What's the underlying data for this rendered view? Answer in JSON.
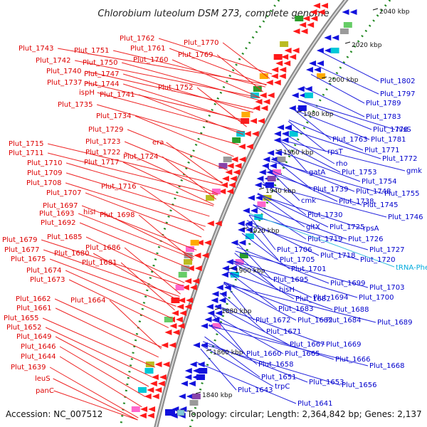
{
  "title": "Chlorobium luteolum DSM 273, complete genome",
  "accession": "Accession: NC_007512",
  "topology": "Topology: circular; Length: 2,364,842 bp; Genes: 2,137",
  "colors": {
    "forward_label": "#dd0000",
    "reverse_label": "#0000cc",
    "rna_label": "#00aadd",
    "backbone": "#888888",
    "dotted_track": "#228822"
  },
  "kbp_markers": [
    "2040 kbp",
    "2020 kbp",
    "2000 kbp",
    "1980 kbp",
    "1960 kbp",
    "1940 kbp",
    "1920 kbp",
    "1900 kbp",
    "1880 kbp",
    "1860 kbp",
    "1840 kbp"
  ],
  "left_labels": [
    "Plut_1762",
    "Plut_1770",
    "Plut_1743",
    "Plut_1751",
    "Plut_1761",
    "Plut_1769",
    "Plut_1742",
    "Plut_1750",
    "Plut_1760",
    "Plut_1740",
    "Plut_1747",
    "Plut_1737",
    "Plut_1744",
    "Plut_1752",
    "ispH",
    "Plut_1741",
    "Plut_1735",
    "Plut_1734",
    "Plut_1729",
    "Plut_1723",
    "era",
    "Plut_1715",
    "Plut_1722",
    "Plut_1711",
    "Plut_1717",
    "Plut_1724",
    "Plut_1710",
    "Plut_1709",
    "Plut_1708",
    "Plut_1716",
    "Plut_1707",
    "Plut_1697",
    "hisI",
    "Plut_1693",
    "Plut_1698",
    "Plut_1692",
    "Plut_1685",
    "Plut_1679",
    "Plut_1686",
    "Plut_1677",
    "Plut_1680",
    "Plut_1675",
    "Plut_1681",
    "Plut_1674",
    "Plut_1673",
    "Plut_1662",
    "Plut_1664",
    "Plut_1661",
    "Plut_1655",
    "Plut_1652",
    "Plut_1649",
    "Plut_1646",
    "Plut_1644",
    "Plut_1639",
    "leuS",
    "panC"
  ],
  "right_labels": [
    "Plut_1802",
    "Plut_1797",
    "Plut_1789",
    "Plut_1783",
    "Plut_1778",
    "hisS",
    "Plut_1781",
    "Plut_1763",
    "Plut_1771",
    "rpsT",
    "Plut_1772",
    "rho",
    "gmk",
    "gatA",
    "Plut_1753",
    "Plut_1754",
    "Plut_1739",
    "Plut_1748",
    "Plut_1755",
    "cmk",
    "Plut_1738",
    "Plut_1745",
    "Plut_1746",
    "Plut_1730",
    "gltX",
    "Plut_1725",
    "rpsA",
    "Plut_1719",
    "Plut_1726",
    "Plut_1706",
    "Plut_1727",
    "Plut_1718",
    "Plut_1705",
    "Plut_1720",
    "Plut_1701",
    "Plut_1695",
    "Plut_1699",
    "Plut_1703",
    "hisH",
    "Plut_1694",
    "Plut_1700",
    "Plut_1687",
    "Plut_1683",
    "Plut_1688",
    "Plut_1672",
    "Plut_1682",
    "Plut_1684",
    "Plut_1689",
    "Plut_1671",
    "Plut_1667",
    "Plut_1669",
    "Plut_1660",
    "Plut_1665",
    "Plut_1666",
    "Plut_1658",
    "Plut_1668",
    "Plut_1651",
    "Plut_1653",
    "trpC",
    "Plut_1656",
    "Plut_1643",
    "Plut_1641"
  ],
  "rna_labels": [
    "tRNA-Phe1"
  ]
}
